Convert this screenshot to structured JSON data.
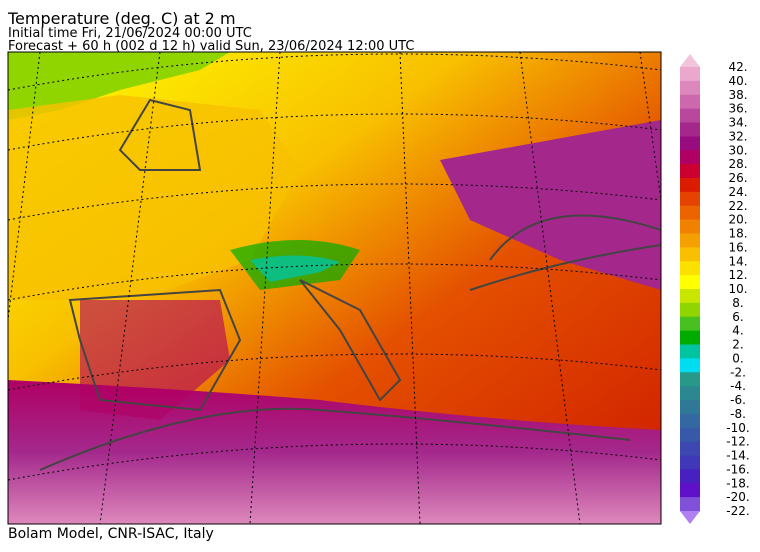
{
  "header": {
    "title": "Temperature (deg. C) at 2 m",
    "line1": "Initial time  Fri, 21/06/2024  00:00 UTC",
    "line2": "Forecast  +  60 h  (002 d 12 h)  valid Sun, 23/06/2024 12:00 UTC"
  },
  "colorbar": {
    "labels": [
      "42.",
      "40.",
      "38.",
      "36.",
      "34.",
      "32.",
      "30.",
      "28.",
      "26.",
      "24.",
      "22.",
      "20.",
      "18.",
      "16.",
      "14.",
      "12.",
      "10.",
      "8.",
      "6.",
      "4.",
      "2.",
      "0.",
      "-2.",
      "-4.",
      "-6.",
      "-8.",
      "-10.",
      "-12.",
      "-14.",
      "-16.",
      "-18.",
      "-20.",
      "-22."
    ],
    "colors": [
      "#f2c4dc",
      "#eaa8cc",
      "#dd88bc",
      "#cc68ac",
      "#b8489c",
      "#a4288c",
      "#980c80",
      "#b00064",
      "#cc0030",
      "#dc1c00",
      "#e44400",
      "#ec6400",
      "#f08200",
      "#f4a000",
      "#f8c000",
      "#fce000",
      "#ffff00",
      "#c8e600",
      "#90d400",
      "#48c020",
      "#00ac00",
      "#00c4a0",
      "#00dcf0",
      "#289888",
      "#2c8890",
      "#307898",
      "#3468a0",
      "#3858a8",
      "#3c48b0",
      "#4038b8",
      "#4820c0",
      "#6010c8",
      "#8050d8",
      "#b080f0"
    ]
  },
  "footer": "Bolam Model, CNR-ISAC, Italy"
}
